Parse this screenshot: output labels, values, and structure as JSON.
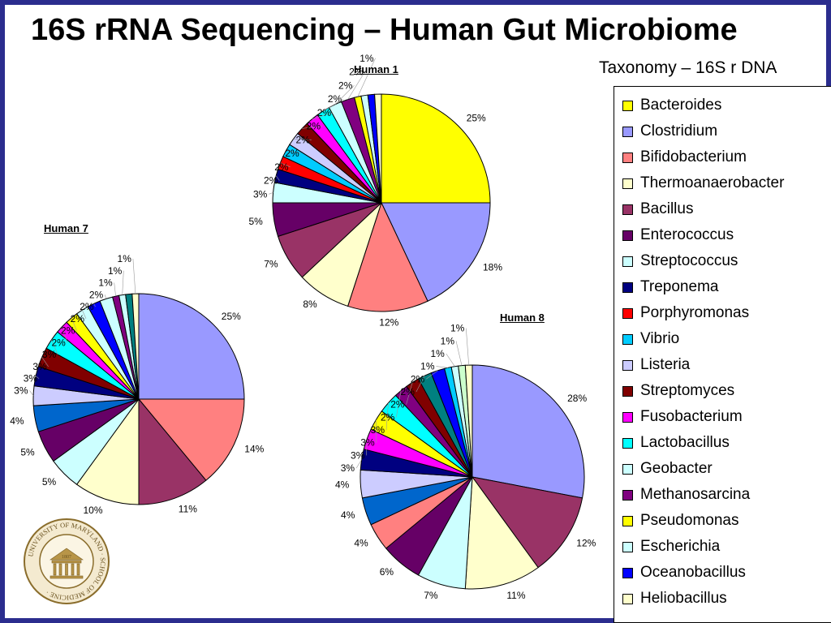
{
  "title": "16S rRNA Sequencing – Human Gut Microbiome",
  "legend_title": "Taxonomy – 16S r DNA",
  "legend": [
    {
      "name": "Bacteroides",
      "color": "#ffff00"
    },
    {
      "name": "Clostridium",
      "color": "#9999ff"
    },
    {
      "name": "Bifidobacterium",
      "color": "#ff8080"
    },
    {
      "name": "Thermoanaerobacter",
      "color": "#ffffcc"
    },
    {
      "name": "Bacillus",
      "color": "#993366"
    },
    {
      "name": "Enterococcus",
      "color": "#660066"
    },
    {
      "name": "Streptococcus",
      "color": "#ccffff"
    },
    {
      "name": "Treponema",
      "color": "#000080"
    },
    {
      "name": "Porphyromonas",
      "color": "#ff0000"
    },
    {
      "name": "Vibrio",
      "color": "#00ccff"
    },
    {
      "name": "Listeria",
      "color": "#ccccff"
    },
    {
      "name": "Streptomyces",
      "color": "#800000"
    },
    {
      "name": "Fusobacterium",
      "color": "#ff00ff"
    },
    {
      "name": "Lactobacillus",
      "color": "#00ffff"
    },
    {
      "name": "Geobacter",
      "color": "#ccffff"
    },
    {
      "name": "Methanosarcina",
      "color": "#800080"
    },
    {
      "name": "Pseudomonas",
      "color": "#ffff00"
    },
    {
      "name": "Escherichia",
      "color": "#ccffff"
    },
    {
      "name": "Oceanobacillus",
      "color": "#0000ff"
    },
    {
      "name": "Heliobacillus",
      "color": "#ffffcc"
    }
  ],
  "chart_data": [
    {
      "type": "pie",
      "title": "Human 1",
      "slices": [
        {
          "label": "25%",
          "value": 25,
          "color": "#ffff00"
        },
        {
          "label": "18%",
          "value": 18,
          "color": "#9999ff"
        },
        {
          "label": "12%",
          "value": 12,
          "color": "#ff8080"
        },
        {
          "label": "8%",
          "value": 8,
          "color": "#ffffcc"
        },
        {
          "label": "7%",
          "value": 7,
          "color": "#993366"
        },
        {
          "label": "5%",
          "value": 5,
          "color": "#660066"
        },
        {
          "label": "3%",
          "value": 3,
          "color": "#ccffff"
        },
        {
          "label": "2%",
          "value": 2,
          "color": "#000080"
        },
        {
          "label": "2%",
          "value": 2,
          "color": "#ff0000"
        },
        {
          "label": "2%",
          "value": 2,
          "color": "#00ccff"
        },
        {
          "label": "2%",
          "value": 2,
          "color": "#ccccff"
        },
        {
          "label": "2%",
          "value": 2,
          "color": "#800000"
        },
        {
          "label": "2%",
          "value": 2,
          "color": "#ff00ff"
        },
        {
          "label": "2%",
          "value": 2,
          "color": "#00ffff"
        },
        {
          "label": "2%",
          "value": 2,
          "color": "#ccffff"
        },
        {
          "label": "2%",
          "value": 2,
          "color": "#800080"
        },
        {
          "label": "1%",
          "value": 1,
          "color": "#ffff00"
        },
        {
          "label": "",
          "value": 1,
          "color": "#ccffff"
        },
        {
          "label": "",
          "value": 1,
          "color": "#0000ff"
        },
        {
          "label": "",
          "value": 1,
          "color": "#ffffcc"
        }
      ]
    },
    {
      "type": "pie",
      "title": "Human 7",
      "slices": [
        {
          "label": "25%",
          "value": 25,
          "color": "#9999ff"
        },
        {
          "label": "14%",
          "value": 14,
          "color": "#ff8080"
        },
        {
          "label": "11%",
          "value": 11,
          "color": "#993366"
        },
        {
          "label": "10%",
          "value": 10,
          "color": "#ffffcc"
        },
        {
          "label": "5%",
          "value": 5,
          "color": "#ccffff"
        },
        {
          "label": "5%",
          "value": 5,
          "color": "#660066"
        },
        {
          "label": "4%",
          "value": 4,
          "color": "#0066cc"
        },
        {
          "label": "3%",
          "value": 3,
          "color": "#ccccff"
        },
        {
          "label": "3%",
          "value": 3,
          "color": "#000080"
        },
        {
          "label": "3%",
          "value": 3,
          "color": "#800000"
        },
        {
          "label": "3%",
          "value": 3,
          "color": "#00ffff"
        },
        {
          "label": "2%",
          "value": 2,
          "color": "#ff00ff"
        },
        {
          "label": "2%",
          "value": 2,
          "color": "#ffff00"
        },
        {
          "label": "2%",
          "value": 2,
          "color": "#ccffff"
        },
        {
          "label": "2%",
          "value": 2,
          "color": "#0000ff"
        },
        {
          "label": "2%",
          "value": 2,
          "color": "#ccffff"
        },
        {
          "label": "1%",
          "value": 1,
          "color": "#800080"
        },
        {
          "label": "1%",
          "value": 1,
          "color": "#ccffff"
        },
        {
          "label": "",
          "value": 1,
          "color": "#008080"
        },
        {
          "label": "1%",
          "value": 1,
          "color": "#ffffcc"
        }
      ]
    },
    {
      "type": "pie",
      "title": "Human 8",
      "slices": [
        {
          "label": "28%",
          "value": 28,
          "color": "#9999ff"
        },
        {
          "label": "12%",
          "value": 12,
          "color": "#993366"
        },
        {
          "label": "11%",
          "value": 11,
          "color": "#ffffcc"
        },
        {
          "label": "7%",
          "value": 7,
          "color": "#ccffff"
        },
        {
          "label": "6%",
          "value": 6,
          "color": "#660066"
        },
        {
          "label": "4%",
          "value": 4,
          "color": "#ff8080"
        },
        {
          "label": "4%",
          "value": 4,
          "color": "#0066cc"
        },
        {
          "label": "4%",
          "value": 4,
          "color": "#ccccff"
        },
        {
          "label": "3%",
          "value": 3,
          "color": "#000080"
        },
        {
          "label": "3%",
          "value": 3,
          "color": "#ff00ff"
        },
        {
          "label": "3%",
          "value": 3,
          "color": "#ffff00"
        },
        {
          "label": "3%",
          "value": 3,
          "color": "#00ffff"
        },
        {
          "label": "2%",
          "value": 2,
          "color": "#800080"
        },
        {
          "label": "2%",
          "value": 2,
          "color": "#800000"
        },
        {
          "label": "2%",
          "value": 2,
          "color": "#008080"
        },
        {
          "label": "2%",
          "value": 2,
          "color": "#0000ff"
        },
        {
          "label": "1%",
          "value": 1,
          "color": "#00ccff"
        },
        {
          "label": "1%",
          "value": 1,
          "color": "#ccffff"
        },
        {
          "label": "1%",
          "value": 1,
          "color": "#ccffcc"
        },
        {
          "label": "1%",
          "value": 1,
          "color": "#ffffcc"
        }
      ]
    }
  ],
  "logo": {
    "ring_text": "UNIVERSITY OF MARYLAND · SCHOOL OF MEDICINE ·",
    "year": "1807"
  }
}
